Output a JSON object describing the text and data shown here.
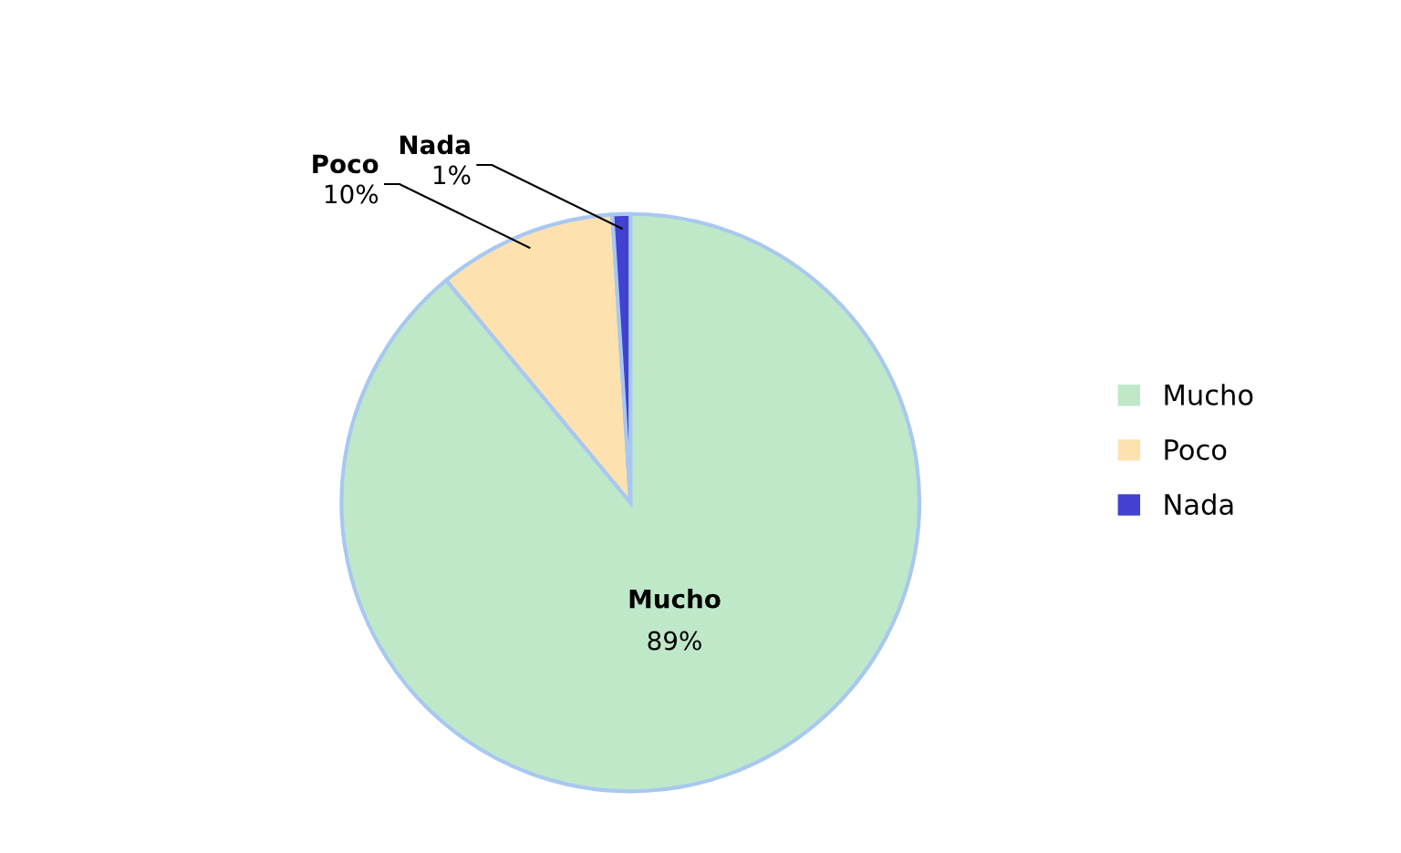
{
  "chart_data": {
    "type": "pie",
    "categories": [
      "Mucho",
      "Poco",
      "Nada"
    ],
    "values": [
      89,
      10,
      1
    ],
    "colors": [
      "#bfe8c9",
      "#fde2b0",
      "#4141d2"
    ],
    "value_labels": [
      "89%",
      "10%",
      "1%"
    ],
    "legend": "right"
  }
}
